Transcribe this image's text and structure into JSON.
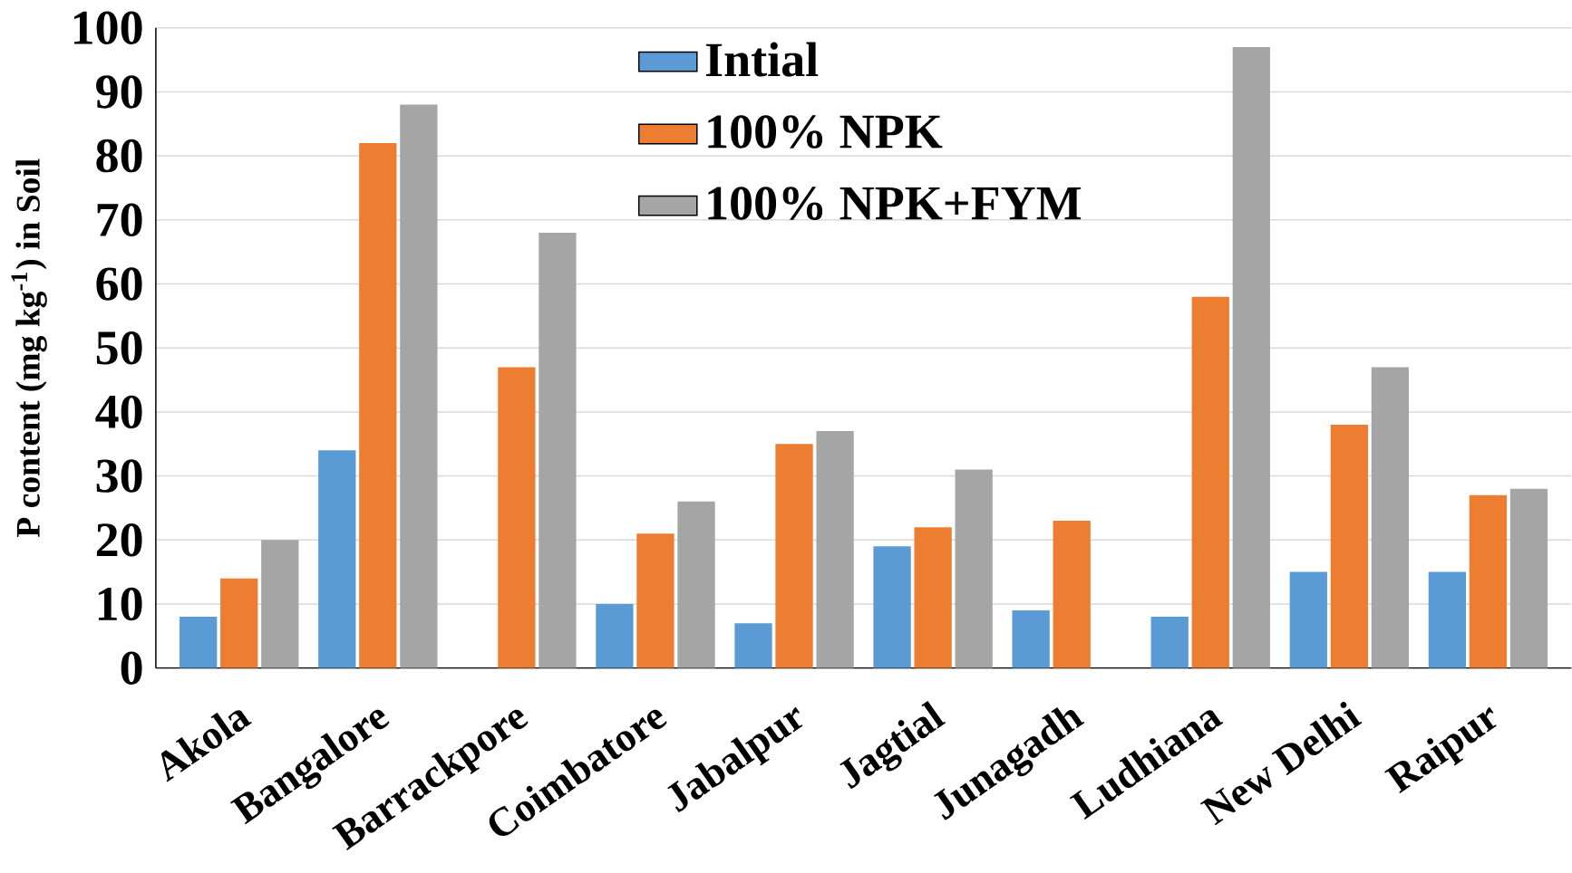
{
  "chart_data": {
    "type": "bar",
    "ylabel": "P content  (mg kg$^{-1}$) in Soil",
    "categories": [
      "Akola",
      "Bangalore",
      "Barrackpore",
      "Coimbatore",
      "Jabalpur",
      "Jagtial",
      "Junagadh",
      "Ludhiana",
      "New Delhi",
      "Raipur"
    ],
    "series": [
      {
        "name": "Intial",
        "color": "#5b9bd5",
        "values": [
          8,
          34,
          null,
          10,
          7,
          19,
          9,
          8,
          15,
          15
        ]
      },
      {
        "name": "100% NPK",
        "color": "#ed7d31",
        "values": [
          14,
          82,
          47,
          21,
          35,
          22,
          23,
          58,
          38,
          27
        ]
      },
      {
        "name": "100% NPK+FYM",
        "color": "#a5a5a5",
        "values": [
          20,
          88,
          68,
          26,
          37,
          31,
          null,
          97,
          47,
          28
        ]
      }
    ],
    "ylim": [
      0,
      100
    ],
    "yticks": [
      0,
      10,
      20,
      30,
      40,
      50,
      60,
      70,
      80,
      90,
      100
    ],
    "grid": "y",
    "legend": "top"
  }
}
